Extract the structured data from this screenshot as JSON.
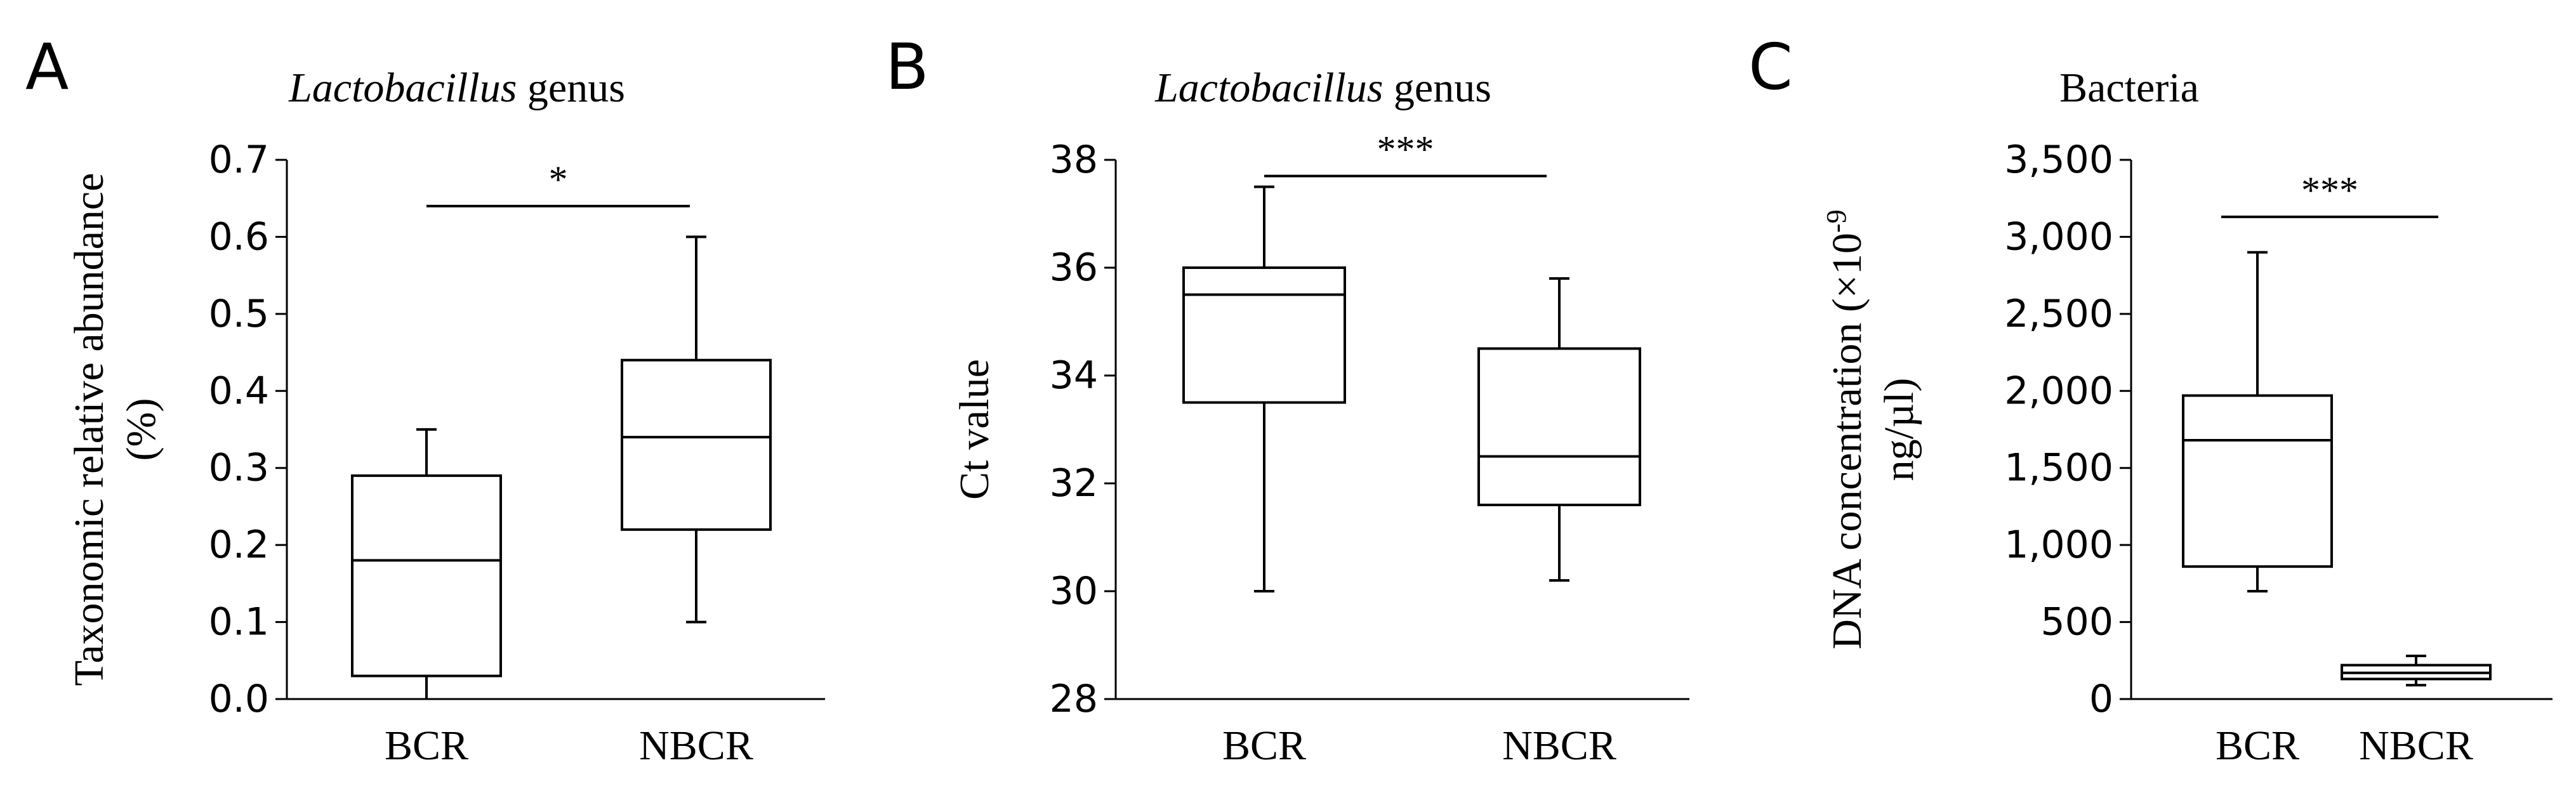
{
  "chart_data": [
    {
      "panel": "A",
      "type": "box",
      "title_italic": "Lactobacillus",
      "title_rest": " genus",
      "ylabel_lines": [
        "Taxonomic relative abundance",
        "(%)"
      ],
      "ylim": [
        0,
        0.7
      ],
      "yticks": [
        {
          "v": 0.0,
          "label": "0.0"
        },
        {
          "v": 0.1,
          "label": "0.1"
        },
        {
          "v": 0.2,
          "label": "0.2"
        },
        {
          "v": 0.3,
          "label": "0.3"
        },
        {
          "v": 0.4,
          "label": "0.4"
        },
        {
          "v": 0.5,
          "label": "0.5"
        },
        {
          "v": 0.6,
          "label": "0.6"
        },
        {
          "v": 0.7,
          "label": "0.7"
        }
      ],
      "categories": [
        "BCR",
        "NBCR"
      ],
      "boxes": [
        {
          "min": 0.0,
          "q1": 0.03,
          "median": 0.18,
          "q3": 0.29,
          "max": 0.35
        },
        {
          "min": 0.1,
          "q1": 0.22,
          "median": 0.34,
          "q3": 0.44,
          "max": 0.6
        }
      ],
      "significance": {
        "label": "*",
        "y": 0.64
      }
    },
    {
      "panel": "B",
      "type": "box",
      "title_italic": "Lactobacillus",
      "title_rest": " genus",
      "ylabel_lines": [
        "Ct value"
      ],
      "ylim": [
        28,
        38
      ],
      "yticks": [
        {
          "v": 28,
          "label": "28"
        },
        {
          "v": 30,
          "label": "30"
        },
        {
          "v": 32,
          "label": "32"
        },
        {
          "v": 34,
          "label": "34"
        },
        {
          "v": 36,
          "label": "36"
        },
        {
          "v": 38,
          "label": "38"
        }
      ],
      "categories": [
        "BCR",
        "NBCR"
      ],
      "boxes": [
        {
          "min": 30.0,
          "q1": 33.5,
          "median": 35.5,
          "q3": 36.0,
          "max": 37.5
        },
        {
          "min": 30.2,
          "q1": 31.6,
          "median": 32.5,
          "q3": 34.5,
          "max": 35.8
        }
      ],
      "significance": {
        "label": "***",
        "y": 37.7
      }
    },
    {
      "panel": "C",
      "type": "box",
      "title_italic": "",
      "title_rest": "Bacteria",
      "ylabel_lines": [
        "DNA concentration (×10-9",
        "ng/µl)"
      ],
      "ylim": [
        0,
        3500
      ],
      "yticks": [
        {
          "v": 0,
          "label": "0"
        },
        {
          "v": 500,
          "label": "500"
        },
        {
          "v": 1000,
          "label": "1,000"
        },
        {
          "v": 1500,
          "label": "1,500"
        },
        {
          "v": 2000,
          "label": "2,000"
        },
        {
          "v": 2500,
          "label": "2,500"
        },
        {
          "v": 3000,
          "label": "3,000"
        },
        {
          "v": 3500,
          "label": "3,500"
        }
      ],
      "categories": [
        "BCR",
        "NBCR"
      ],
      "boxes": [
        {
          "min": 700,
          "q1": 860,
          "median": 1680,
          "q3": 1970,
          "max": 2900
        },
        {
          "min": 90,
          "q1": 130,
          "median": 170,
          "q3": 220,
          "max": 280
        }
      ],
      "significance": {
        "label": "***",
        "y": 3130
      }
    }
  ]
}
